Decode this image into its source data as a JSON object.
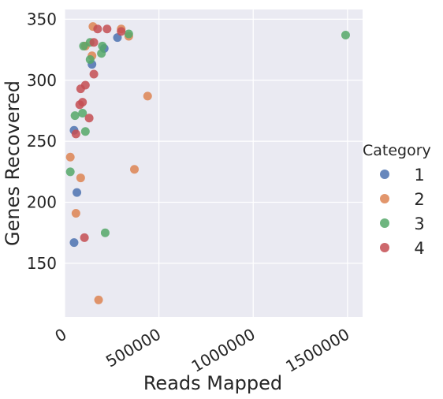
{
  "chart_data": {
    "type": "scatter",
    "title": "",
    "xlabel": "Reads Mapped",
    "ylabel": "Genes Recovered",
    "xlim": [
      0,
      1580000
    ],
    "ylim": [
      106,
      358
    ],
    "xticks": [
      0,
      500000,
      1000000,
      1500000
    ],
    "xtick_labels": [
      "0",
      "500000",
      "1000000",
      "1500000"
    ],
    "yticks": [
      150,
      200,
      250,
      300,
      350
    ],
    "ytick_labels": [
      "150",
      "200",
      "250",
      "300",
      "350"
    ],
    "grid": true,
    "legend": {
      "title": "Category",
      "placement": "right"
    },
    "series": [
      {
        "name": "1",
        "color": "#4c72b0",
        "points": [
          {
            "x": 280000,
            "y": 335
          },
          {
            "x": 145000,
            "y": 313
          },
          {
            "x": 210000,
            "y": 326
          },
          {
            "x": 50000,
            "y": 259
          },
          {
            "x": 65000,
            "y": 208
          },
          {
            "x": 50000,
            "y": 167
          }
        ]
      },
      {
        "name": "2",
        "color": "#dd8452",
        "points": [
          {
            "x": 150000,
            "y": 344
          },
          {
            "x": 300000,
            "y": 342
          },
          {
            "x": 340000,
            "y": 336
          },
          {
            "x": 110000,
            "y": 328
          },
          {
            "x": 145000,
            "y": 320
          },
          {
            "x": 440000,
            "y": 287
          },
          {
            "x": 30000,
            "y": 237
          },
          {
            "x": 85000,
            "y": 220
          },
          {
            "x": 370000,
            "y": 227
          },
          {
            "x": 60000,
            "y": 191
          },
          {
            "x": 180000,
            "y": 120
          }
        ]
      },
      {
        "name": "3",
        "color": "#55a868",
        "points": [
          {
            "x": 340000,
            "y": 338
          },
          {
            "x": 1490000,
            "y": 337
          },
          {
            "x": 135000,
            "y": 331
          },
          {
            "x": 100000,
            "y": 328
          },
          {
            "x": 200000,
            "y": 328
          },
          {
            "x": 195000,
            "y": 322
          },
          {
            "x": 135000,
            "y": 317
          },
          {
            "x": 55000,
            "y": 271
          },
          {
            "x": 95000,
            "y": 273
          },
          {
            "x": 110000,
            "y": 258
          },
          {
            "x": 30000,
            "y": 225
          },
          {
            "x": 215000,
            "y": 175
          }
        ]
      },
      {
        "name": "4",
        "color": "#c44e52",
        "points": [
          {
            "x": 175000,
            "y": 342
          },
          {
            "x": 225000,
            "y": 342
          },
          {
            "x": 300000,
            "y": 340
          },
          {
            "x": 155000,
            "y": 331
          },
          {
            "x": 155000,
            "y": 305
          },
          {
            "x": 110000,
            "y": 296
          },
          {
            "x": 85000,
            "y": 293
          },
          {
            "x": 95000,
            "y": 282
          },
          {
            "x": 80000,
            "y": 280
          },
          {
            "x": 130000,
            "y": 269
          },
          {
            "x": 60000,
            "y": 256
          },
          {
            "x": 105000,
            "y": 171
          }
        ]
      }
    ]
  }
}
